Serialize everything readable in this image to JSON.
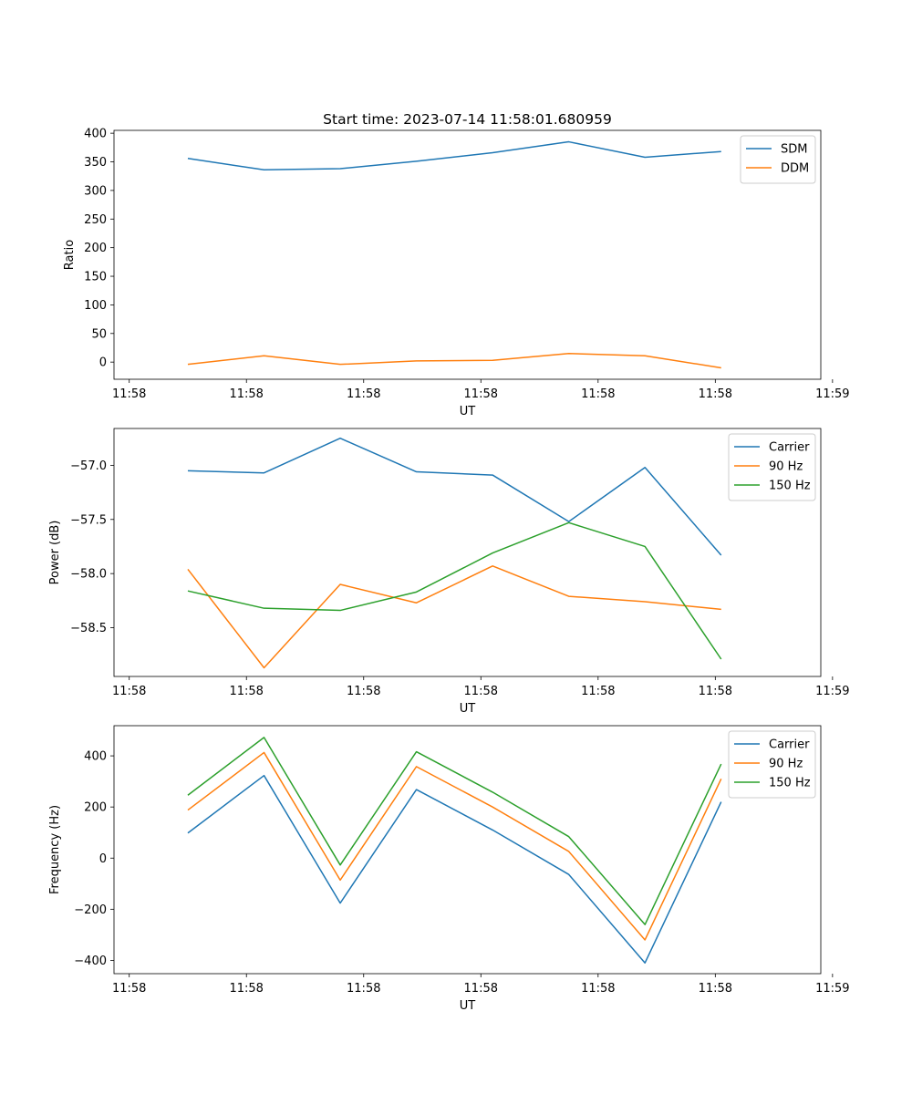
{
  "chart_data": [
    {
      "type": "line",
      "title": "Start time: 2023-07-14 11:58:01.680959",
      "xlabel": "UT",
      "ylabel": "Ratio",
      "x_tick_labels": [
        "11:58",
        "11:58",
        "11:58",
        "11:58",
        "11:58",
        "11:58",
        "11:59"
      ],
      "x_ticks": [
        0,
        1,
        2,
        3,
        4,
        5,
        6
      ],
      "x": [
        0.5,
        1.15,
        1.8,
        2.45,
        3.1,
        3.75,
        4.4,
        5.05
      ],
      "xlim": [
        -0.13,
        5.9
      ],
      "ylim": [
        -30,
        405
      ],
      "y_ticks": [
        0,
        50,
        100,
        150,
        200,
        250,
        300,
        350,
        400
      ],
      "legend_position": "top-right",
      "series": [
        {
          "name": "SDM",
          "color": "#1f77b4",
          "values": [
            356,
            336,
            338,
            351,
            366,
            385,
            358,
            368
          ]
        },
        {
          "name": "DDM",
          "color": "#ff7f0e",
          "values": [
            -4,
            11,
            -4,
            2,
            3,
            15,
            11,
            -10
          ]
        }
      ]
    },
    {
      "type": "line",
      "xlabel": "UT",
      "ylabel": "Power (dB)",
      "x_tick_labels": [
        "11:58",
        "11:58",
        "11:58",
        "11:58",
        "11:58",
        "11:58",
        "11:59"
      ],
      "x_ticks": [
        0,
        1,
        2,
        3,
        4,
        5,
        6
      ],
      "x": [
        0.5,
        1.15,
        1.8,
        2.45,
        3.1,
        3.75,
        4.4,
        5.05
      ],
      "xlim": [
        -0.13,
        5.9
      ],
      "ylim": [
        -58.95,
        -56.66
      ],
      "y_ticks": [
        -58.5,
        -58.0,
        -57.5,
        -57.0
      ],
      "y_tick_labels": [
        "−58.5",
        "−58.0",
        "−57.5",
        "−57.0"
      ],
      "legend_position": "top-right",
      "series": [
        {
          "name": "Carrier",
          "color": "#1f77b4",
          "values": [
            -57.05,
            -57.07,
            -56.75,
            -57.06,
            -57.09,
            -57.52,
            -57.02,
            -57.83
          ]
        },
        {
          "name": "90 Hz",
          "color": "#ff7f0e",
          "values": [
            -57.96,
            -58.87,
            -58.1,
            -58.27,
            -57.93,
            -58.21,
            -58.26,
            -58.33
          ]
        },
        {
          "name": "150 Hz",
          "color": "#2ca02c",
          "values": [
            -58.16,
            -58.32,
            -58.34,
            -58.17,
            -57.81,
            -57.53,
            -57.75,
            -58.79
          ]
        }
      ]
    },
    {
      "type": "line",
      "xlabel": "UT",
      "ylabel": "Frequency (Hz)",
      "x_tick_labels": [
        "11:58",
        "11:58",
        "11:58",
        "11:58",
        "11:58",
        "11:58",
        "11:59"
      ],
      "x_ticks": [
        0,
        1,
        2,
        3,
        4,
        5,
        6
      ],
      "x": [
        0.5,
        1.15,
        1.8,
        2.45,
        3.1,
        3.75,
        4.4,
        5.05
      ],
      "xlim": [
        -0.13,
        5.9
      ],
      "ylim": [
        -452,
        518
      ],
      "y_ticks": [
        -400,
        -200,
        0,
        200,
        400
      ],
      "y_tick_labels": [
        "−400",
        "−200",
        "0",
        "200",
        "400"
      ],
      "legend_position": "top-right",
      "series": [
        {
          "name": "Carrier",
          "color": "#1f77b4",
          "values": [
            98,
            323,
            -176,
            268,
            110,
            -64,
            -410,
            220
          ]
        },
        {
          "name": "90 Hz",
          "color": "#ff7f0e",
          "values": [
            188,
            413,
            -86,
            358,
            200,
            26,
            -320,
            310
          ]
        },
        {
          "name": "150 Hz",
          "color": "#2ca02c",
          "values": [
            246,
            472,
            -27,
            416,
            258,
            84,
            -260,
            368
          ]
        }
      ]
    }
  ]
}
